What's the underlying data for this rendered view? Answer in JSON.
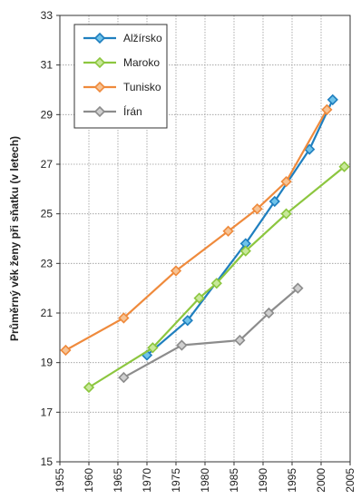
{
  "chart_data": {
    "type": "line",
    "title": "",
    "xlabel": "",
    "ylabel": "Průměrný věk ženy při sňatku (v letech)",
    "xlim": [
      1955,
      2005
    ],
    "ylim": [
      15,
      33
    ],
    "xticks": [
      "1955",
      "1960",
      "1965",
      "1970",
      "1975",
      "1980",
      "1985",
      "1990",
      "1995",
      "2000",
      "2005"
    ],
    "yticks": [
      "15",
      "17",
      "19",
      "21",
      "23",
      "25",
      "27",
      "29",
      "31",
      "33"
    ],
    "grid": true,
    "legend_position": "top-left",
    "series": [
      {
        "name": "Alžírsko",
        "color": "#1f7fbf",
        "marker_fill": "#6fc3ea",
        "x": [
          1970,
          1977,
          1987,
          1992,
          1998,
          2002
        ],
        "y": [
          19.3,
          20.7,
          23.8,
          25.5,
          27.6,
          29.6
        ]
      },
      {
        "name": "Maroko",
        "color": "#8cc63f",
        "marker_fill": "#c8e89a",
        "x": [
          1960,
          1971,
          1979,
          1982,
          1987,
          1994,
          2004
        ],
        "y": [
          18.0,
          19.6,
          21.6,
          22.2,
          23.5,
          25.0,
          26.9
        ]
      },
      {
        "name": "Tunisko",
        "color": "#ef8a3c",
        "marker_fill": "#f7c394",
        "x": [
          1956,
          1966,
          1975,
          1984,
          1989,
          1994,
          2001
        ],
        "y": [
          19.5,
          20.8,
          22.7,
          24.3,
          25.2,
          26.3,
          29.2
        ]
      },
      {
        "name": "Írán",
        "color": "#8c8c8c",
        "marker_fill": "#cfcfcf",
        "x": [
          1966,
          1976,
          1986,
          1991,
          1996
        ],
        "y": [
          18.4,
          19.7,
          19.9,
          21.0,
          22.0
        ]
      }
    ]
  }
}
